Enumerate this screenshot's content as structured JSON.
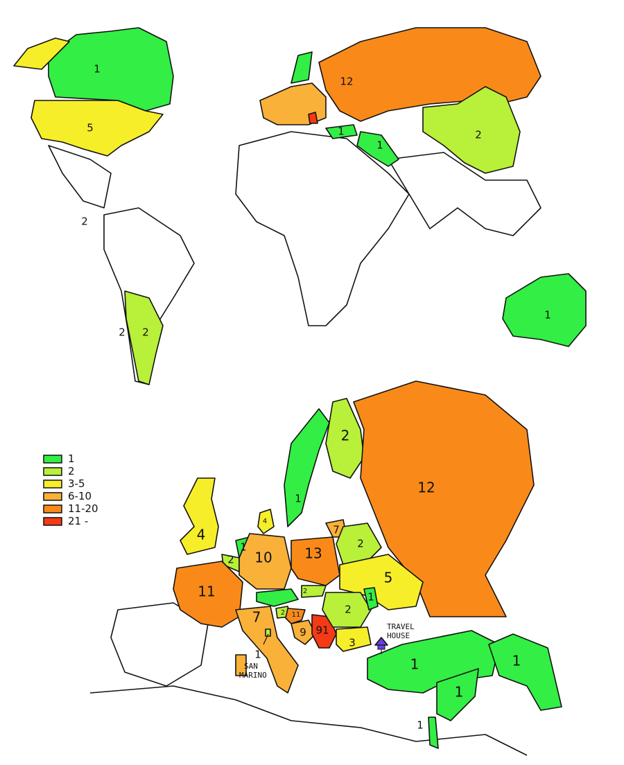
{
  "legend": {
    "items": [
      {
        "label": "1",
        "color": "#33ee44"
      },
      {
        "label": "2",
        "color": "#b8f03a"
      },
      {
        "label": "3-5",
        "color": "#f7ee2a"
      },
      {
        "label": "6-10",
        "color": "#f9b13a"
      },
      {
        "label": "11-20",
        "color": "#f98a1a"
      },
      {
        "label": "21 -",
        "color": "#f53a16"
      }
    ]
  },
  "world_map": {
    "regions": [
      {
        "value": "1",
        "category": "1"
      },
      {
        "value": "5",
        "category": "3-5"
      },
      {
        "value": "2",
        "category": "2"
      },
      {
        "value": "2",
        "category": "2"
      },
      {
        "value": "2",
        "category": "2"
      },
      {
        "value": "12",
        "category": "11-20"
      },
      {
        "value": "2",
        "category": "2"
      },
      {
        "value": "1",
        "category": "1"
      },
      {
        "value": "1",
        "category": "1"
      },
      {
        "value": "1",
        "category": "1"
      }
    ]
  },
  "europe_map": {
    "regions": [
      {
        "value": "1",
        "category": "1"
      },
      {
        "value": "2",
        "category": "2"
      },
      {
        "value": "12",
        "category": "11-20"
      },
      {
        "value": "4",
        "category": "3-5"
      },
      {
        "value": "4",
        "category": "3-5"
      },
      {
        "value": "1",
        "category": "1"
      },
      {
        "value": "2",
        "category": "2"
      },
      {
        "value": "10",
        "category": "6-10"
      },
      {
        "value": "13",
        "category": "11-20"
      },
      {
        "value": "7",
        "category": "6-10"
      },
      {
        "value": "2",
        "category": "2"
      },
      {
        "value": "5",
        "category": "3-5"
      },
      {
        "value": "11",
        "category": "11-20"
      },
      {
        "value": "2",
        "category": "2"
      },
      {
        "value": "2",
        "category": "2"
      },
      {
        "value": "11",
        "category": "11-20"
      },
      {
        "value": "9",
        "category": "6-10"
      },
      {
        "value": "91",
        "category": "21 -"
      },
      {
        "value": "2",
        "category": "2"
      },
      {
        "value": "1",
        "category": "1"
      },
      {
        "value": "3",
        "category": "3-5"
      },
      {
        "value": "7",
        "category": "6-10"
      },
      {
        "value": "1",
        "category": "1"
      },
      {
        "value": "1",
        "category": "1"
      },
      {
        "value": "1",
        "category": "1"
      },
      {
        "value": "1",
        "category": "1"
      },
      {
        "value": "1",
        "category": "1"
      }
    ],
    "annotations": {
      "san_marino": [
        "SAN",
        "MARINO"
      ],
      "travel_house": [
        "TRAVEL",
        "HOUSE"
      ],
      "travel_house_marker_color": "#6a3fe0"
    }
  }
}
